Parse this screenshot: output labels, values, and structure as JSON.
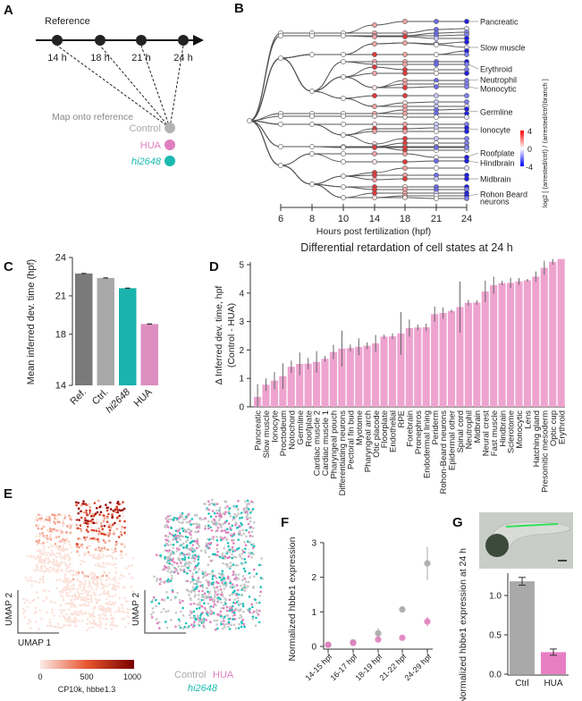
{
  "panels": {
    "a": "A",
    "b": "B",
    "c": "C",
    "d": "D",
    "e": "E",
    "f": "F",
    "g": "G"
  },
  "panel_a": {
    "reference_label": "Reference",
    "timepoints": [
      "14 h",
      "18 h",
      "21 h",
      "24 h"
    ],
    "map_label": "Map onto reference",
    "conditions": [
      {
        "name": "Control",
        "color": "#b3b3b3"
      },
      {
        "name": "HUA",
        "color": "#e07fbf"
      },
      {
        "name": "hi2648",
        "color": "#1bb9b0"
      }
    ]
  },
  "panel_b": {
    "xlabel": "Hours post fertilization (hpf)",
    "ticks": [
      "6",
      "8",
      "10",
      "14",
      "18",
      "21",
      "24"
    ],
    "labels": [
      "Pancreatic",
      "Slow muscle",
      "Erythroid",
      "Neutrophil",
      "Monocytic",
      "Germline",
      "Ionocyte",
      "Roofplate",
      "Hindbrain",
      "Midbrain",
      "Rohon Beard",
      "neurons"
    ],
    "colorbar": {
      "max": "4",
      "mid": "0",
      "min": "-4",
      "label": "log2 [ (arrested/ctrl) / ⟨arrested/ctrl⟩branch ]",
      "high_color": "#ff0000",
      "low_color": "#0000ff"
    }
  },
  "chart_data": [
    {
      "panel": "C",
      "type": "bar",
      "categories": [
        "Ref.",
        "Ctrl.",
        "hi2648",
        "HUA"
      ],
      "values": [
        22.75,
        22.4,
        21.6,
        18.8
      ],
      "colors": [
        "#7a7a7a",
        "#a9a9a9",
        "#1bb3ad",
        "#dc8fc0"
      ],
      "ylabel": "Mean inferred dev. time (hpf)",
      "yticks": [
        "14",
        "18",
        "21",
        "24"
      ],
      "ylim": [
        14,
        24
      ]
    },
    {
      "panel": "D",
      "type": "bar",
      "title": "Differential retardation of cell states at 24 h",
      "ylabel": "Δ Inferred dev. time, hpf",
      "ylabel2": "(Control - HUA)",
      "yticks": [
        "0",
        "1",
        "2",
        "3",
        "4",
        "5"
      ],
      "ylim": [
        0,
        5.2
      ],
      "categories": [
        "Pancreatic",
        "Slow muscle",
        "Ionocyte",
        "Proctodeum",
        "Notochord",
        "Germline",
        "Roofplate",
        "Cardiac muscle 2",
        "Cardiac muscle 1",
        "Pharyngeal pouch",
        "Differentiating neurons",
        "Pectoral fin bud",
        "Myotome",
        "Pharyngeal arch",
        "Otic placode",
        "Floorplate",
        "Endothelial",
        "RPE",
        "Forebrain",
        "Pronephros",
        "Endodermal lining",
        "Periderm",
        "Rohon-Beard neurons",
        "Epidermal other",
        "Spinal cord",
        "Neutrophil",
        "Midbrain",
        "Neural crest",
        "Fast muscle",
        "Hindbrain",
        "Sclerotome",
        "Monocytic",
        "Lens",
        "Hatching gland",
        "Presomitic mesoderm",
        "Optic cup",
        "Erythroid"
      ],
      "values": [
        0.35,
        0.78,
        0.92,
        1.08,
        1.41,
        1.51,
        1.52,
        1.58,
        1.69,
        1.93,
        2.05,
        2.07,
        2.11,
        2.15,
        2.23,
        2.47,
        2.48,
        2.58,
        2.77,
        2.79,
        2.8,
        3.26,
        3.3,
        3.37,
        3.51,
        3.66,
        3.67,
        4.06,
        4.28,
        4.35,
        4.36,
        4.41,
        4.45,
        4.58,
        4.89,
        5.1,
        5.2
      ],
      "errors": [
        0.45,
        0.22,
        0.3,
        0.45,
        0.22,
        0.4,
        0.2,
        0.38,
        0.1,
        0.25,
        0.63,
        0.12,
        0.3,
        0.12,
        0.3,
        0.07,
        0.1,
        0.75,
        0.3,
        0.1,
        0.13,
        0.27,
        0.2,
        0.05,
        0.9,
        0.1,
        0.08,
        0.38,
        0.3,
        0.08,
        0.18,
        0.12,
        0.05,
        0.18,
        0.25,
        0.1,
        0.0
      ],
      "color": "#eea3cf"
    },
    {
      "panel": "F",
      "type": "scatter",
      "ylabel": "Normalized hbbe1 expression",
      "categories": [
        "14-15 hpf",
        "16-17 hpf",
        "18-19 hpf",
        "21-22 hpf",
        "24-29 hpf"
      ],
      "yticks": [
        "0",
        "1",
        "2",
        "3"
      ],
      "ylim": [
        0,
        3
      ],
      "series": [
        {
          "name": "Control",
          "color": "#a9a9a9",
          "values": [
            0.05,
            0.12,
            0.38,
            1.07,
            2.4
          ],
          "errors": [
            0.02,
            0.05,
            0.15,
            0.05,
            0.48
          ]
        },
        {
          "name": "HUA",
          "color": "#e07fbf",
          "values": [
            0.05,
            0.1,
            0.2,
            0.25,
            0.72
          ],
          "errors": [
            0.02,
            0.03,
            0.05,
            0.03,
            0.14
          ]
        }
      ]
    },
    {
      "panel": "G",
      "type": "bar",
      "ylabel": "Normalized hbbe1 expression at 24 h",
      "categories": [
        "Ctrl",
        "HUA"
      ],
      "values": [
        1.18,
        0.28
      ],
      "errors": [
        0.05,
        0.04
      ],
      "colors": [
        "#a9a9a9",
        "#e87fc4"
      ],
      "yticks": [
        "0.0",
        "0.5",
        "1.0"
      ],
      "ylim": [
        0,
        1.3
      ]
    }
  ],
  "panel_e": {
    "axis_x": "UMAP 1",
    "axis_y": "UMAP 2",
    "colorbar_ticks": [
      "0",
      "500",
      "1000"
    ],
    "colorbar_label": "CP10k, hbbe1.3",
    "legend": [
      "Control",
      "HUA",
      "hi2648"
    ]
  }
}
